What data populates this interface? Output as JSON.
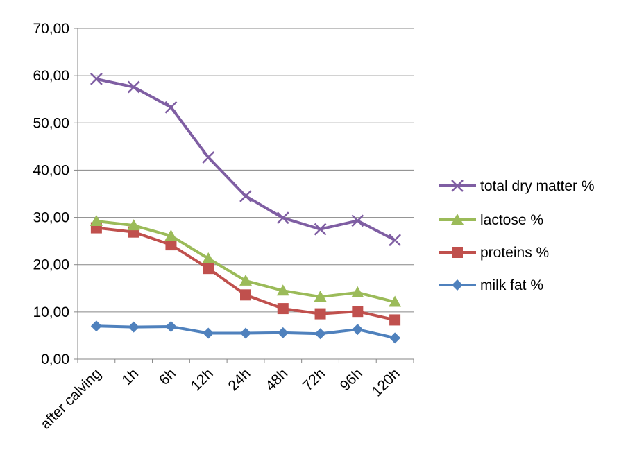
{
  "chart_data": {
    "type": "line",
    "categories": [
      "after calving",
      "1h",
      "6h",
      "12h",
      "24h",
      "48h",
      "72h",
      "96h",
      "120h"
    ],
    "ylim": [
      0,
      70
    ],
    "yticks": [
      "0,00",
      "10,00",
      "20,00",
      "30,00",
      "40,00",
      "50,00",
      "60,00",
      "70,00"
    ],
    "ytick_values": [
      0,
      10,
      20,
      30,
      40,
      50,
      60,
      70
    ],
    "grid": true,
    "legend_position": "right",
    "series": [
      {
        "name": "total dry matter %",
        "color": "#7f5ea3",
        "marker": "x",
        "values": [
          59.3,
          57.6,
          53.3,
          42.7,
          34.5,
          29.9,
          27.5,
          29.3,
          25.2
        ]
      },
      {
        "name": "lactose %",
        "color": "#9bbb59",
        "marker": "triangle",
        "values": [
          29.2,
          28.3,
          26.1,
          21.3,
          16.6,
          14.5,
          13.2,
          14.1,
          12.1
        ]
      },
      {
        "name": "proteins %",
        "color": "#c0504d",
        "marker": "square",
        "values": [
          27.8,
          26.9,
          24.2,
          19.2,
          13.6,
          10.7,
          9.6,
          10.1,
          8.3
        ]
      },
      {
        "name": "milk fat %",
        "color": "#4f81bd",
        "marker": "diamond",
        "values": [
          7.0,
          6.8,
          6.9,
          5.5,
          5.5,
          5.6,
          5.4,
          6.3,
          4.5
        ]
      }
    ]
  }
}
